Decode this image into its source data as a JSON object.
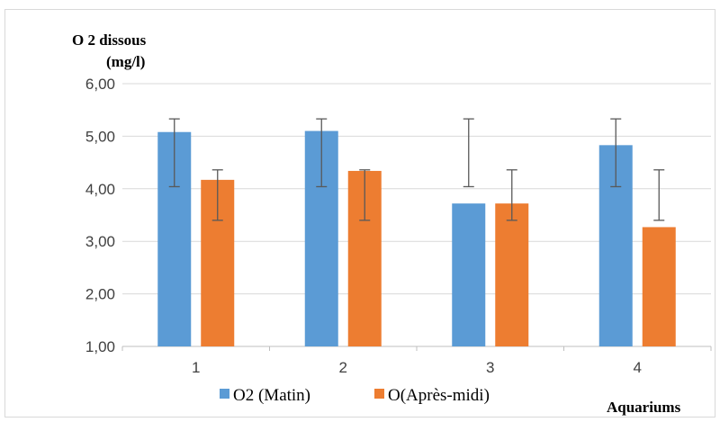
{
  "chart_data": {
    "type": "bar",
    "title": "",
    "ylabel_line1": "O 2 dissous",
    "ylabel_line2": "(mg/l)",
    "xlabel": "Aquariums",
    "categories": [
      "1",
      "2",
      "3",
      "4"
    ],
    "ylim": [
      1,
      6
    ],
    "yticks": [
      1,
      2,
      3,
      4,
      5,
      6
    ],
    "ytick_labels": [
      "1,00",
      "2,00",
      "3,00",
      "4,00",
      "5,00",
      "6,00"
    ],
    "grid": true,
    "legend_position": "bottom",
    "series": [
      {
        "name": "O2 (Matin)",
        "color": "#5b9bd5",
        "values": [
          5.08,
          5.1,
          3.72,
          4.83
        ],
        "error_low": [
          4.04,
          4.04,
          4.04,
          4.04
        ],
        "error_high": [
          5.33,
          5.33,
          5.33,
          5.33
        ]
      },
      {
        "name": "O(Après-midi)",
        "color": "#ed7d31",
        "values": [
          4.17,
          4.34,
          3.72,
          3.27
        ],
        "error_low": [
          3.4,
          3.4,
          3.4,
          3.4
        ],
        "error_high": [
          4.36,
          4.36,
          4.36,
          4.36
        ]
      }
    ]
  }
}
